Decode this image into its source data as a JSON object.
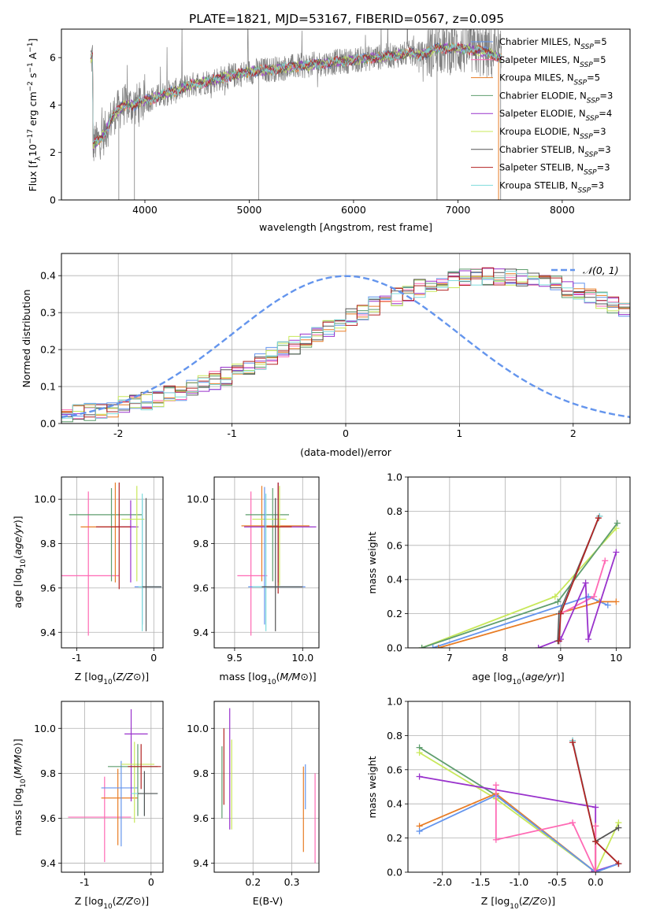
{
  "figure_title": "PLATE=1821, MJD=53167, FIBERID=0567, z=0.095",
  "chart_data": [
    {
      "id": "spectrum",
      "type": "line",
      "title": "PLATE=1821, MJD=53167, FIBERID=0567, z=0.095",
      "xlabel": "wavelength [Angstrom, rest frame]",
      "ylabel": "Flux [f_λ 10^-17 erg cm^-2 s^-1 A^-1]",
      "xlim": [
        3200,
        8650
      ],
      "ylim": [
        0,
        7.2
      ],
      "xticks": [
        4000,
        5000,
        6000,
        7000,
        8000
      ],
      "yticks": [
        0,
        2,
        4,
        6
      ],
      "grid": false,
      "legend_position": "right",
      "data_color": "#808080",
      "data_anchor_x": [
        3500,
        3600,
        3700,
        3800,
        3900,
        4000,
        4100,
        4200,
        4300,
        4400,
        4500,
        4600,
        4700,
        4800,
        4900,
        5000,
        5200,
        5400,
        5600,
        5800,
        6000,
        6200,
        6400,
        6500,
        6560,
        6600,
        6700,
        6800,
        7000,
        7200,
        7300,
        7400
      ],
      "data_anchor_y": [
        2.3,
        2.7,
        3.6,
        4.0,
        4.0,
        4.2,
        4.3,
        4.5,
        4.6,
        4.8,
        4.9,
        5.0,
        5.1,
        5.2,
        5.3,
        5.4,
        5.5,
        5.6,
        5.7,
        5.8,
        5.9,
        6.0,
        6.1,
        6.15,
        6.2,
        6.1,
        6.2,
        6.4,
        6.4,
        6.3,
        6.2,
        6.0
      ],
      "legend": [
        {
          "label": "Chabrier MILES, N_SSP=5",
          "color": "#6495ED"
        },
        {
          "label": "Salpeter MILES, N_SSP=5",
          "color": "#FF69B4"
        },
        {
          "label": "Kroupa MILES, N_SSP=5",
          "color": "#E87D26"
        },
        {
          "label": "Chabrier ELODIE, N_SSP=3",
          "color": "#5F9E6E"
        },
        {
          "label": "Salpeter ELODIE, N_SSP=4",
          "color": "#9932CC"
        },
        {
          "label": "Kroupa ELODIE, N_SSP=3",
          "color": "#C8E85A"
        },
        {
          "label": "Chabrier STELIB, N_SSP=3",
          "color": "#555555"
        },
        {
          "label": "Salpeter STELIB, N_SSP=3",
          "color": "#B22222"
        },
        {
          "label": "Kroupa STELIB, N_SSP=3",
          "color": "#7FDCDC"
        }
      ]
    },
    {
      "id": "residuals",
      "type": "line",
      "xlabel": "(data-model)/error",
      "ylabel": "Normed distribution",
      "xlim": [
        -2.5,
        2.5
      ],
      "ylim": [
        0,
        0.46
      ],
      "xticks": [
        -2,
        -1,
        0,
        1,
        2
      ],
      "yticks": [
        0.0,
        0.1,
        0.2,
        0.3,
        0.4
      ],
      "grid": true,
      "legend_position": "top-right",
      "bin_width": 0.1,
      "reference_curve": {
        "label": "𝒩(0, 1)",
        "color": "#6495ED"
      },
      "series_base": [
        0.025,
        0.028,
        0.032,
        0.037,
        0.042,
        0.048,
        0.054,
        0.061,
        0.068,
        0.077,
        0.086,
        0.095,
        0.106,
        0.117,
        0.128,
        0.141,
        0.154,
        0.168,
        0.182,
        0.197,
        0.212,
        0.228,
        0.243,
        0.259,
        0.274,
        0.289,
        0.304,
        0.318,
        0.331,
        0.343,
        0.355,
        0.365,
        0.374,
        0.382,
        0.388,
        0.393,
        0.397,
        0.399,
        0.399,
        0.397,
        0.393,
        0.388,
        0.382,
        0.374,
        0.365,
        0.355,
        0.343,
        0.331,
        0.318,
        0.304,
        0.289,
        0.274,
        0.259,
        0.243,
        0.228,
        0.212,
        0.197,
        0.182,
        0.168,
        0.154,
        0.141,
        0.128,
        0.117,
        0.106,
        0.095,
        0.086,
        0.077,
        0.068,
        0.061,
        0.054,
        0.048,
        0.042,
        0.037,
        0.032,
        0.028,
        0.025,
        0.022,
        0.02,
        0.018,
        0.016,
        0.015,
        0.014,
        0.013,
        0.012,
        0.012,
        0.012,
        0.012,
        0.012,
        0.012,
        0.012,
        0.012,
        0.012,
        0.012,
        0.012,
        0.012,
        0.012,
        0.012,
        0.012,
        0.012,
        0.012
      ],
      "colors": [
        "#6495ED",
        "#FF69B4",
        "#E87D26",
        "#5F9E6E",
        "#9932CC",
        "#C8E85A",
        "#555555",
        "#B22222",
        "#7FDCDC"
      ]
    },
    {
      "id": "age-vs-Z",
      "type": "scatter",
      "xlabel": "Z [log10(Z/Z⊙)]",
      "ylabel": "age  [log10(age/yr)]",
      "xlim": [
        -1.2,
        0.12
      ],
      "ylim": [
        9.33,
        10.1
      ],
      "xticks": [
        -1,
        0
      ],
      "yticks": [
        9.4,
        9.6,
        9.8,
        10.0
      ],
      "grid": true,
      "crosses": [
        {
          "x": -0.85,
          "y": 9.655,
          "xerr": [
            0.4,
            0.4
          ],
          "yerr": [
            0.27,
            0.38
          ],
          "color": "#FF69B4"
        },
        {
          "x": -0.55,
          "y": 9.93,
          "xerr": [
            0.55,
            0.4
          ],
          "yerr": [
            0.3,
            0.12
          ],
          "color": "#5F9E6E"
        },
        {
          "x": -0.5,
          "y": 9.875,
          "xerr": [
            0.45,
            0.25
          ],
          "yerr": [
            0.25,
            0.2
          ],
          "color": "#E87D26"
        },
        {
          "x": -0.3,
          "y": 9.875,
          "xerr": [
            0.2,
            0.1
          ],
          "yerr": [
            0.25,
            0.12
          ],
          "color": "#9932CC"
        },
        {
          "x": -0.22,
          "y": 9.91,
          "xerr": [
            0.2,
            0.1
          ],
          "yerr": [
            0.28,
            0.15
          ],
          "color": "#C8E85A"
        },
        {
          "x": -0.45,
          "y": 9.875,
          "xerr": [
            0.3,
            0.15
          ],
          "yerr": [
            0.28,
            0.2
          ],
          "color": "#B22222"
        },
        {
          "x": -0.15,
          "y": 9.605,
          "xerr": [
            0.1,
            0.25
          ],
          "yerr": [
            0.17,
            0.4
          ],
          "color": "#6495ED"
        },
        {
          "x": -0.15,
          "y": 9.605,
          "xerr": [
            0.05,
            0.25
          ],
          "yerr": [
            0.2,
            0.42
          ],
          "color": "#7FDCDC"
        },
        {
          "x": -0.1,
          "y": 9.605,
          "xerr": [
            0.05,
            0.2
          ],
          "yerr": [
            0.2,
            0.4
          ],
          "color": "#555555"
        }
      ]
    },
    {
      "id": "age-vs-mass",
      "type": "scatter",
      "xlabel": "mass [log10(M/M⊙)]",
      "ylabel": "",
      "xlim": [
        9.35,
        10.12
      ],
      "ylim": [
        9.33,
        10.1
      ],
      "xticks": [
        9.5,
        10.0
      ],
      "yticks": [
        9.4,
        9.6,
        9.8,
        10.0
      ],
      "grid": true,
      "crosses": [
        {
          "x": 9.62,
          "y": 9.655,
          "xerr": [
            0.1,
            0.12
          ],
          "yerr": [
            0.27,
            0.38
          ],
          "color": "#FF69B4"
        },
        {
          "x": 9.7,
          "y": 9.88,
          "xerr": [
            0.15,
            0.35
          ],
          "yerr": [
            0.25,
            0.18
          ],
          "color": "#E87D26"
        },
        {
          "x": 9.78,
          "y": 9.93,
          "xerr": [
            0.2,
            0.12
          ],
          "yerr": [
            0.3,
            0.12
          ],
          "color": "#5F9E6E"
        },
        {
          "x": 9.82,
          "y": 9.875,
          "xerr": [
            0.25,
            0.28
          ],
          "yerr": [
            0.25,
            0.2
          ],
          "color": "#9932CC"
        },
        {
          "x": 9.83,
          "y": 9.91,
          "xerr": [
            0.2,
            0.05
          ],
          "yerr": [
            0.3,
            0.15
          ],
          "color": "#C8E85A"
        },
        {
          "x": 9.82,
          "y": 9.875,
          "xerr": [
            0.1,
            0.1
          ],
          "yerr": [
            0.3,
            0.2
          ],
          "color": "#B22222"
        },
        {
          "x": 9.72,
          "y": 9.605,
          "xerr": [
            0.12,
            0.3
          ],
          "yerr": [
            0.17,
            0.45
          ],
          "color": "#6495ED"
        },
        {
          "x": 9.73,
          "y": 9.605,
          "xerr": [
            0.1,
            0.25
          ],
          "yerr": [
            0.2,
            0.42
          ],
          "color": "#7FDCDC"
        },
        {
          "x": 9.8,
          "y": 9.605,
          "xerr": [
            0.1,
            0.2
          ],
          "yerr": [
            0.2,
            0.4
          ],
          "color": "#555555"
        }
      ]
    },
    {
      "id": "mass-weight-vs-age",
      "type": "line",
      "xlabel": "age  [log10(age/yr)]",
      "ylabel": "mass weight",
      "xlim": [
        6.25,
        10.25
      ],
      "ylim": [
        0,
        1
      ],
      "xticks": [
        7,
        8,
        9,
        10
      ],
      "yticks": [
        0.0,
        0.2,
        0.4,
        0.6,
        0.8,
        1.0
      ],
      "grid": true,
      "series": [
        {
          "color": "#C8E85A",
          "x": [
            6.5,
            8.9,
            10.0
          ],
          "y": [
            0.0,
            0.3,
            0.7
          ]
        },
        {
          "color": "#5F9E6E",
          "x": [
            6.5,
            8.95,
            10.02
          ],
          "y": [
            0.0,
            0.27,
            0.73
          ]
        },
        {
          "color": "#6495ED",
          "x": [
            6.7,
            9.5,
            9.85
          ],
          "y": [
            0.0,
            0.3,
            0.25
          ]
        },
        {
          "color": "#E87D26",
          "x": [
            6.8,
            9.7,
            10.0
          ],
          "y": [
            0.0,
            0.27,
            0.27
          ]
        },
        {
          "color": "#FF69B4",
          "x": [
            9.0,
            9.6,
            9.8
          ],
          "y": [
            0.2,
            0.3,
            0.51
          ]
        },
        {
          "color": "#9932CC",
          "x": [
            8.6,
            9.0,
            9.45,
            9.5,
            10.0
          ],
          "y": [
            0.0,
            0.05,
            0.38,
            0.05,
            0.56
          ]
        },
        {
          "color": "#555555",
          "x": [
            8.95,
            8.97,
            9.7
          ],
          "y": [
            0.04,
            0.2,
            0.77
          ]
        },
        {
          "color": "#7FDCDC",
          "x": [
            8.97,
            8.99,
            9.7
          ],
          "y": [
            0.04,
            0.2,
            0.77
          ]
        },
        {
          "color": "#B22222",
          "x": [
            8.97,
            9.0,
            9.68
          ],
          "y": [
            0.04,
            0.2,
            0.76
          ]
        }
      ]
    },
    {
      "id": "mass-vs-Z",
      "type": "scatter",
      "xlabel": "Z [log10(Z/Z⊙)]",
      "ylabel": "mass [log10(M/M⊙)]",
      "xlim": [
        -1.35,
        0.18
      ],
      "ylim": [
        9.36,
        10.12
      ],
      "xticks": [
        -1,
        0
      ],
      "yticks": [
        9.4,
        9.6,
        9.8,
        10.0
      ],
      "grid": true,
      "crosses": [
        {
          "x": -0.7,
          "y": 9.605,
          "xerr": [
            0.55,
            0.4
          ],
          "yerr": [
            0.2,
            0.18
          ],
          "color": "#FF69B4"
        },
        {
          "x": -0.5,
          "y": 9.69,
          "xerr": [
            0.25,
            0.3
          ],
          "yerr": [
            0.21,
            0.13
          ],
          "color": "#E87D26"
        },
        {
          "x": -0.45,
          "y": 9.735,
          "xerr": [
            0.3,
            0.25
          ],
          "yerr": [
            0.26,
            0.12
          ],
          "color": "#6495ED"
        },
        {
          "x": -0.3,
          "y": 9.975,
          "xerr": [
            0.1,
            0.25
          ],
          "yerr": [
            0.3,
            0.11
          ],
          "color": "#9932CC"
        },
        {
          "x": -0.25,
          "y": 9.84,
          "xerr": [
            0.2,
            0.3
          ],
          "yerr": [
            0.26,
            0.1
          ],
          "color": "#C8E85A"
        },
        {
          "x": -0.2,
          "y": 9.83,
          "xerr": [
            0.45,
            0.3
          ],
          "yerr": [
            0.22,
            0.1
          ],
          "color": "#5F9E6E"
        },
        {
          "x": -0.15,
          "y": 9.83,
          "xerr": [
            0.2,
            0.3
          ],
          "yerr": [
            0.1,
            0.1
          ],
          "color": "#B22222"
        },
        {
          "x": -0.1,
          "y": 9.71,
          "xerr": [
            0.2,
            0.2
          ],
          "yerr": [
            0.1,
            0.06
          ],
          "color": "#7FDCDC"
        },
        {
          "x": -0.1,
          "y": 9.71,
          "xerr": [
            0.1,
            0.2
          ],
          "yerr": [
            0.1,
            0.1
          ],
          "color": "#555555"
        }
      ]
    },
    {
      "id": "mass-vs-ebv",
      "type": "scatter",
      "xlabel": "E(B-V)",
      "ylabel": "",
      "xlim": [
        0.1,
        0.37
      ],
      "ylim": [
        9.36,
        10.12
      ],
      "xticks": [
        0.2,
        0.3
      ],
      "yticks": [
        9.4,
        9.6,
        9.8,
        10.0
      ],
      "grid": true,
      "crosses": [
        {
          "x": 0.12,
          "y": 9.77,
          "yerr": [
            0.17,
            0.15
          ],
          "color": "#5F9E6E"
        },
        {
          "x": 0.125,
          "y": 9.83,
          "yerr": [
            0.17,
            0.17
          ],
          "color": "#B22222"
        },
        {
          "x": 0.14,
          "y": 9.82,
          "yerr": [
            0.27,
            0.27
          ],
          "color": "#9932CC"
        },
        {
          "x": 0.145,
          "y": 9.75,
          "yerr": [
            0.2,
            0.2
          ],
          "color": "#C8E85A"
        },
        {
          "x": 0.33,
          "y": 9.65,
          "yerr": [
            0.2,
            0.18
          ],
          "color": "#E87D26"
        },
        {
          "x": 0.335,
          "y": 9.74,
          "yerr": [
            0.1,
            0.1
          ],
          "color": "#6495ED"
        },
        {
          "x": 0.36,
          "y": 9.6,
          "yerr": [
            0.2,
            0.2
          ],
          "color": "#FF69B4"
        }
      ]
    },
    {
      "id": "mass-weight-vs-Z",
      "type": "line",
      "xlabel": "Z [log10(Z/Z⊙)]",
      "ylabel": "mass weight",
      "xlim": [
        -2.45,
        0.45
      ],
      "ylim": [
        0,
        1
      ],
      "xticks": [
        -2.0,
        -1.5,
        -1.0,
        -0.5,
        0.0
      ],
      "yticks": [
        0.0,
        0.2,
        0.4,
        0.6,
        0.8,
        1.0
      ],
      "grid": true,
      "series": [
        {
          "color": "#5F9E6E",
          "x": [
            -2.3,
            -1.3,
            0.0,
            0.3
          ],
          "y": [
            0.73,
            0.45,
            0.0,
            0.05
          ]
        },
        {
          "color": "#C8E85A",
          "x": [
            -2.3,
            -1.3,
            0.0,
            0.3
          ],
          "y": [
            0.7,
            0.43,
            0.0,
            0.29
          ]
        },
        {
          "color": "#9932CC",
          "x": [
            -2.3,
            0.0,
            0.0,
            -0.05,
            0.3
          ],
          "y": [
            0.56,
            0.38,
            0.0,
            0.0,
            0.05
          ]
        },
        {
          "color": "#E87D26",
          "x": [
            -2.3,
            -1.3,
            0.0,
            0.0
          ],
          "y": [
            0.27,
            0.46,
            0.0,
            0.27
          ]
        },
        {
          "color": "#6495ED",
          "x": [
            -2.3,
            -1.3,
            0.0,
            0.3
          ],
          "y": [
            0.24,
            0.45,
            0.0,
            0.05
          ]
        },
        {
          "color": "#FF69B4",
          "x": [
            -1.3,
            -1.3,
            -0.3,
            0.0,
            0.0
          ],
          "y": [
            0.51,
            0.19,
            0.29,
            0.0,
            0.27
          ]
        },
        {
          "color": "#555555",
          "x": [
            -0.3,
            0.0,
            0.3
          ],
          "y": [
            0.77,
            0.18,
            0.26
          ]
        },
        {
          "color": "#7FDCDC",
          "x": [
            -0.3,
            0.0,
            0.3
          ],
          "y": [
            0.77,
            0.18,
            0.05
          ]
        },
        {
          "color": "#B22222",
          "x": [
            -0.3,
            0.0,
            0.3
          ],
          "y": [
            0.76,
            0.18,
            0.05
          ]
        }
      ]
    }
  ]
}
